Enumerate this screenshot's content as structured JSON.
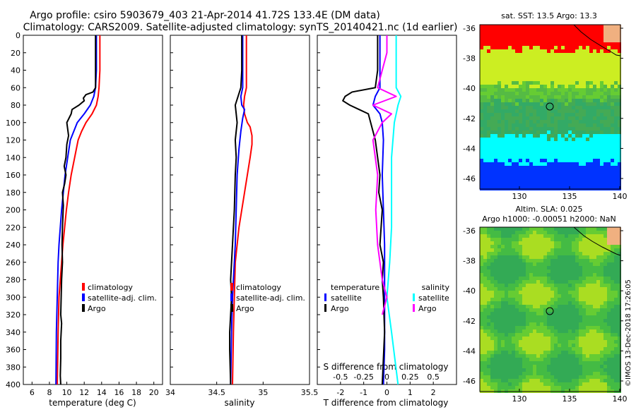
{
  "header": {
    "title_line1": "Argo profile: csiro 5903679_403 21-Apr-2014 41.72S 133.4E (DM data)",
    "title_line2": "Climatology: CARS2009. Satellite-adjusted climatology: synTS_20140421.nc (1d earlier)"
  },
  "colors": {
    "climatology": "#ff0000",
    "satellite": "#0000ff",
    "argo": "#000000",
    "salinity_satellite": "#00ffff",
    "salinity_argo": "#ff00ff"
  },
  "chart_data": [
    {
      "type": "line",
      "name": "temperature-profile",
      "xlabel": "temperature (deg C)",
      "ylabel": "depth",
      "xlim": [
        5,
        21
      ],
      "ylim": [
        400,
        0
      ],
      "xticks": [
        "6",
        "8",
        "10",
        "12",
        "14",
        "16",
        "18",
        "20"
      ],
      "xtick_values": [
        6,
        8,
        10,
        12,
        14,
        16,
        18,
        20
      ],
      "yticks": [
        "0",
        "20",
        "40",
        "60",
        "80",
        "100",
        "120",
        "140",
        "160",
        "180",
        "200",
        "220",
        "240",
        "260",
        "280",
        "300",
        "320",
        "340",
        "360",
        "380",
        "400"
      ],
      "ytick_values": [
        0,
        20,
        40,
        60,
        80,
        100,
        120,
        140,
        160,
        180,
        200,
        220,
        240,
        260,
        280,
        300,
        320,
        340,
        360,
        380,
        400
      ],
      "legend": [
        "climatology",
        "satellite-adj. clim.",
        "Argo"
      ],
      "series": [
        {
          "name": "climatology",
          "color": "#ff0000",
          "x": [
            13.8,
            13.8,
            13.8,
            13.7,
            13.6,
            13.4,
            12.9,
            12.2,
            11.7,
            11.3,
            10.9,
            10.5,
            10.2,
            9.95,
            9.75,
            9.55,
            9.4,
            9.25,
            9.1,
            9.0,
            8.9
          ],
          "y": [
            0,
            20,
            40,
            60,
            70,
            80,
            90,
            100,
            110,
            120,
            140,
            160,
            180,
            200,
            220,
            240,
            260,
            280,
            300,
            340,
            400
          ]
        },
        {
          "name": "satellite-adj. clim.",
          "color": "#0000ff",
          "x": [
            13.4,
            13.4,
            13.4,
            13.3,
            13.1,
            12.7,
            12.0,
            11.2,
            10.8,
            10.4,
            10.1,
            9.8,
            9.6,
            9.4,
            9.25,
            9.1,
            9.0,
            8.9,
            8.8,
            8.75
          ],
          "y": [
            0,
            20,
            40,
            60,
            70,
            80,
            90,
            100,
            110,
            120,
            140,
            160,
            180,
            200,
            220,
            240,
            260,
            300,
            340,
            400
          ]
        },
        {
          "name": "Argo",
          "color": "#000000",
          "x": [
            13.3,
            13.3,
            13.3,
            13.3,
            13.0,
            12.2,
            11.9,
            12.0,
            11.4,
            10.6,
            10.5,
            10.0,
            10.2,
            10.0,
            9.9,
            9.7,
            9.9,
            9.75,
            9.5,
            9.6,
            9.5,
            9.45,
            9.5,
            9.4,
            9.35,
            9.3,
            9.4,
            9.3,
            9.3,
            9.25,
            9.3
          ],
          "y": [
            0,
            20,
            40,
            60,
            65,
            68,
            72,
            75,
            80,
            85,
            90,
            100,
            115,
            125,
            140,
            150,
            160,
            170,
            180,
            195,
            220,
            240,
            260,
            280,
            300,
            320,
            330,
            350,
            370,
            390,
            400
          ]
        }
      ]
    },
    {
      "type": "line",
      "name": "salinity-profile",
      "xlabel": "salinity",
      "xlim": [
        34,
        35.5
      ],
      "ylim": [
        400,
        0
      ],
      "xticks": [
        "34",
        "34.5",
        "35",
        "35.5"
      ],
      "xtick_values": [
        34,
        34.5,
        35,
        35.5
      ],
      "legend": [
        "climatology",
        "satellite-adj. clim.",
        "Argo"
      ],
      "series": [
        {
          "name": "climatology",
          "color": "#ff0000",
          "x": [
            34.82,
            34.82,
            34.82,
            34.82,
            34.8,
            34.79,
            34.8,
            34.83,
            34.86,
            34.88,
            34.88,
            34.86,
            34.83,
            34.8,
            34.77,
            34.74,
            34.72,
            34.7,
            34.69,
            34.68,
            34.67
          ],
          "y": [
            0,
            20,
            40,
            60,
            70,
            80,
            90,
            100,
            105,
            115,
            125,
            140,
            160,
            180,
            200,
            220,
            240,
            260,
            300,
            340,
            400
          ]
        },
        {
          "name": "satellite-adj. clim.",
          "color": "#0000ff",
          "x": [
            34.78,
            34.78,
            34.78,
            34.78,
            34.76,
            34.77,
            34.8,
            34.78,
            34.76,
            34.74,
            34.72,
            34.71,
            34.7,
            34.69,
            34.67,
            34.66,
            34.65
          ],
          "y": [
            0,
            20,
            40,
            60,
            70,
            80,
            85,
            95,
            110,
            130,
            160,
            200,
            240,
            260,
            300,
            340,
            400
          ]
        },
        {
          "name": "Argo",
          "color": "#000000",
          "x": [
            34.77,
            34.77,
            34.77,
            34.76,
            34.7,
            34.72,
            34.7,
            34.71,
            34.7,
            34.69,
            34.67,
            34.66,
            34.65,
            34.66,
            34.65,
            34.64,
            34.64,
            34.65
          ],
          "y": [
            0,
            20,
            40,
            60,
            80,
            100,
            120,
            140,
            160,
            200,
            240,
            260,
            280,
            300,
            320,
            340,
            360,
            400
          ]
        }
      ]
    },
    {
      "type": "line",
      "name": "difference-profile",
      "xlabel": "T difference from climatology",
      "xlabel_top": "S difference from climatology",
      "xlim": [
        -3,
        3
      ],
      "ylim": [
        400,
        0
      ],
      "xticks": [
        "-2",
        "-1",
        "0",
        "1",
        "2"
      ],
      "xtick_values": [
        -2,
        -1,
        0,
        1,
        2
      ],
      "s_xticks": [
        "-0.5",
        "-0.25",
        "0",
        "0.25",
        "0.5"
      ],
      "s_xtick_values": [
        -0.5,
        -0.25,
        0,
        0.25,
        0.5
      ],
      "legend_left_title": "temperature",
      "legend_right_title": "salinity",
      "legend_left": [
        "satellite",
        "Argo"
      ],
      "legend_right": [
        "satellite",
        "Argo"
      ],
      "series": [
        {
          "name": "T satellite",
          "color": "#0000ff",
          "x": [
            -0.3,
            -0.3,
            -0.3,
            -0.3,
            -0.5,
            -0.6,
            -0.3,
            -0.2,
            -0.15,
            -0.2,
            -0.15,
            -0.1,
            -0.1,
            -0.1,
            -0.1,
            -0.15
          ],
          "y": [
            0,
            20,
            40,
            60,
            70,
            80,
            90,
            100,
            120,
            160,
            200,
            240,
            280,
            320,
            360,
            400
          ]
        },
        {
          "name": "T Argo",
          "color": "#000000",
          "x": [
            -0.4,
            -0.4,
            -0.4,
            -0.5,
            -1.5,
            -1.8,
            -1.9,
            -1.6,
            -1.2,
            -0.8,
            -0.7,
            -0.5,
            -0.4,
            -0.3,
            -0.35,
            -0.2,
            -0.3,
            -0.15,
            -0.2,
            -0.15,
            -0.1,
            -0.2
          ],
          "y": [
            0,
            20,
            40,
            60,
            65,
            70,
            75,
            80,
            85,
            90,
            100,
            120,
            140,
            160,
            180,
            200,
            240,
            260,
            280,
            300,
            340,
            400
          ]
        },
        {
          "name": "S satellite",
          "color": "#00ffff",
          "x": [
            0.1,
            0.1,
            0.1,
            0.1,
            0.15,
            0.12,
            0.1,
            0.08,
            0.05,
            0.05,
            0.05,
            0.03,
            0.0,
            0.05,
            0.12
          ],
          "y": [
            0,
            20,
            40,
            60,
            70,
            80,
            90,
            100,
            140,
            180,
            220,
            260,
            300,
            340,
            400
          ]
        },
        {
          "name": "S Argo",
          "color": "#ff00ff",
          "x": [
            0.0,
            0.0,
            -0.05,
            -0.1,
            0.1,
            -0.15,
            0.05,
            -0.05,
            -0.15,
            -0.1,
            -0.12,
            -0.1,
            -0.05,
            0.0,
            -0.05
          ],
          "y": [
            0,
            20,
            40,
            60,
            70,
            80,
            90,
            100,
            120,
            160,
            200,
            240,
            280,
            300,
            320
          ]
        }
      ]
    }
  ],
  "maps": {
    "sst": {
      "title": "sat. SST: 13.5 Argo: 13.3",
      "xticks": [
        "130",
        "135",
        "140"
      ],
      "yticks": [
        "-36",
        "-38",
        "-40",
        "-42",
        "-44",
        "-46"
      ]
    },
    "sla": {
      "title_line1": "Altim. SLA: 0.025",
      "title_line2": "Argo h1000: -0.00051 h2000: NaN",
      "xticks": [
        "130",
        "135",
        "140"
      ],
      "yticks": [
        "-36",
        "-38",
        "-40",
        "-42",
        "-44",
        "-46"
      ]
    }
  },
  "credit": "©IMOS 13-Dec-2018 17:26:05"
}
